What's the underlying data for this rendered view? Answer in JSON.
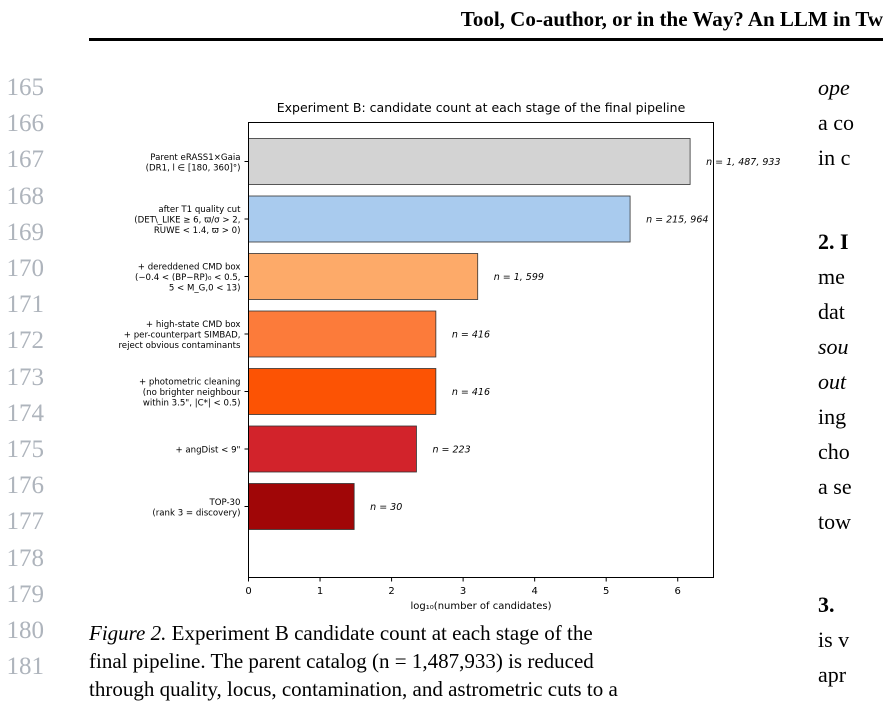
{
  "running_head": "Tool, Co-author, or in the Way? An LLM in Tw",
  "line_numbers": [
    "165",
    "166",
    "167",
    "168",
    "169",
    "170",
    "171",
    "172",
    "173",
    "174",
    "175",
    "176",
    "177",
    "178",
    "179",
    "180",
    "181"
  ],
  "caption": {
    "label": "Figure 2.",
    "lines": [
      "Experiment B candidate count at each stage of the",
      "final pipeline.  The parent catalog (n = 1,487,933) is reduced",
      "through quality, locus, contamination, and astrometric cuts to a"
    ]
  },
  "right_column": [
    {
      "text": "ope",
      "style": "it"
    },
    {
      "text": "a co",
      "style": ""
    },
    {
      "text": "in c",
      "style": ""
    },
    {
      "text": "2. I",
      "style": "b"
    },
    {
      "text": "me",
      "style": ""
    },
    {
      "text": "dat",
      "style": ""
    },
    {
      "text": "sou",
      "style": "it"
    },
    {
      "text": "out",
      "style": "it"
    },
    {
      "text": "ing",
      "style": ""
    },
    {
      "text": "cho",
      "style": ""
    },
    {
      "text": "a se",
      "style": ""
    },
    {
      "text": "tow",
      "style": ""
    },
    {
      "text": "3.",
      "style": "b"
    },
    {
      "text": "is v",
      "style": ""
    },
    {
      "text": "apr",
      "style": ""
    }
  ],
  "chart_data": {
    "type": "bar",
    "orientation": "horizontal",
    "title": "Experiment B: candidate count at each stage of the final pipeline",
    "xlabel": "log₁₀(number of candidates)",
    "ylabel": "",
    "xlim": [
      0,
      6.5
    ],
    "x_ticks": [
      "0",
      "1",
      "2",
      "3",
      "4",
      "5",
      "6"
    ],
    "grid": false,
    "categories": [
      [
        "Parent eRASS1×Gaia",
        "(DR1, l ∈ [180, 360]°)"
      ],
      [
        "after T1 quality cut",
        "(DET\\_LIKE ≥ 6, ϖ/σ > 2,",
        "RUWE < 1.4, ϖ > 0)"
      ],
      [
        "+ dereddened CMD box",
        "(−0.4 < (BP−RP)₀ < 0.5,",
        "5 < M_G,0 < 13)"
      ],
      [
        "+ high-state CMD box",
        "+ per-counterpart SIMBAD,",
        "reject obvious contaminants"
      ],
      [
        "+ photometric cleaning",
        "(no brighter neighbour",
        "within 3.5\", |C*| < 0.5)"
      ],
      [
        "+ angDist < 9\""
      ],
      [
        "TOP-30",
        "(rank 3 = discovery)"
      ]
    ],
    "counts": [
      1487933,
      215964,
      1599,
      416,
      416,
      223,
      30
    ],
    "values": [
      6.173,
      5.334,
      3.204,
      2.619,
      2.619,
      2.348,
      1.477
    ],
    "value_labels": [
      "n = 1, 487, 933",
      "n = 215, 964",
      "n = 1, 599",
      "n = 416",
      "n = 416",
      "n = 223",
      "n = 30"
    ],
    "colors": [
      "#d3d3d3",
      "#a9cbee",
      "#fdaa69",
      "#fc7b3a",
      "#fc5304",
      "#d2232b",
      "#a00607"
    ]
  }
}
